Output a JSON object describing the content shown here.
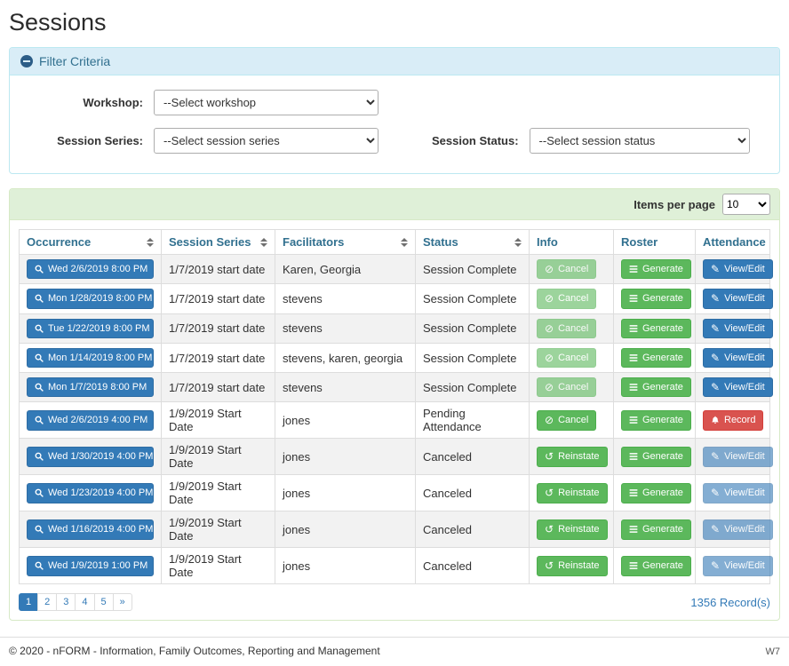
{
  "page": {
    "title": "Sessions",
    "footer_text": "© 2020 - nFORM - Information, Family Outcomes, Reporting and Management",
    "footer_right": "W7"
  },
  "filter": {
    "title": "Filter Criteria",
    "workshop_label": "Workshop:",
    "workshop_selected": "--Select workshop",
    "session_series_label": "Session Series:",
    "session_series_selected": "--Select session series",
    "session_status_label": "Session Status:",
    "session_status_selected": "--Select session status"
  },
  "table": {
    "items_per_page_label": "Items per page",
    "items_per_page_selected": "10",
    "columns": [
      {
        "label": "Occurrence",
        "sortable": true
      },
      {
        "label": "Session Series",
        "sortable": true
      },
      {
        "label": "Facilitators",
        "sortable": true
      },
      {
        "label": "Status",
        "sortable": true
      },
      {
        "label": "Info",
        "sortable": false
      },
      {
        "label": "Roster",
        "sortable": false
      },
      {
        "label": "Attendance",
        "sortable": false
      }
    ],
    "rows": [
      {
        "occurrence": {
          "label": "Wed 2/6/2019 8:00 PM",
          "icon": "search-icon"
        },
        "session_series": "1/7/2019 start date",
        "facilitators": "Karen, Georgia",
        "status": "Session Complete",
        "info": {
          "label": "Cancel",
          "icon": "ban-icon",
          "variant": "success",
          "disabled": true
        },
        "roster": {
          "label": "Generate",
          "icon": "list-icon",
          "variant": "success",
          "disabled": false
        },
        "attendance": {
          "label": "View/Edit",
          "icon": "pencil-icon",
          "variant": "primary",
          "disabled": false
        }
      },
      {
        "occurrence": {
          "label": "Mon 1/28/2019 8:00 PM",
          "icon": "search-icon"
        },
        "session_series": "1/7/2019 start date",
        "facilitators": "stevens",
        "status": "Session Complete",
        "info": {
          "label": "Cancel",
          "icon": "ban-icon",
          "variant": "success",
          "disabled": true
        },
        "roster": {
          "label": "Generate",
          "icon": "list-icon",
          "variant": "success",
          "disabled": false
        },
        "attendance": {
          "label": "View/Edit",
          "icon": "pencil-icon",
          "variant": "primary",
          "disabled": false
        }
      },
      {
        "occurrence": {
          "label": "Tue 1/22/2019 8:00 PM",
          "icon": "search-icon"
        },
        "session_series": "1/7/2019 start date",
        "facilitators": "stevens",
        "status": "Session Complete",
        "info": {
          "label": "Cancel",
          "icon": "ban-icon",
          "variant": "success",
          "disabled": true
        },
        "roster": {
          "label": "Generate",
          "icon": "list-icon",
          "variant": "success",
          "disabled": false
        },
        "attendance": {
          "label": "View/Edit",
          "icon": "pencil-icon",
          "variant": "primary",
          "disabled": false
        }
      },
      {
        "occurrence": {
          "label": "Mon 1/14/2019 8:00 PM",
          "icon": "search-icon"
        },
        "session_series": "1/7/2019 start date",
        "facilitators": "stevens, karen, georgia",
        "status": "Session Complete",
        "info": {
          "label": "Cancel",
          "icon": "ban-icon",
          "variant": "success",
          "disabled": true
        },
        "roster": {
          "label": "Generate",
          "icon": "list-icon",
          "variant": "success",
          "disabled": false
        },
        "attendance": {
          "label": "View/Edit",
          "icon": "pencil-icon",
          "variant": "primary",
          "disabled": false
        }
      },
      {
        "occurrence": {
          "label": "Mon 1/7/2019 8:00 PM",
          "icon": "search-icon"
        },
        "session_series": "1/7/2019 start date",
        "facilitators": "stevens",
        "status": "Session Complete",
        "info": {
          "label": "Cancel",
          "icon": "ban-icon",
          "variant": "success",
          "disabled": true
        },
        "roster": {
          "label": "Generate",
          "icon": "list-icon",
          "variant": "success",
          "disabled": false
        },
        "attendance": {
          "label": "View/Edit",
          "icon": "pencil-icon",
          "variant": "primary",
          "disabled": false
        }
      },
      {
        "occurrence": {
          "label": "Wed 2/6/2019 4:00 PM",
          "icon": "search-icon"
        },
        "session_series": "1/9/2019 Start Date",
        "facilitators": "jones",
        "status": "Pending Attendance",
        "info": {
          "label": "Cancel",
          "icon": "ban-icon",
          "variant": "success",
          "disabled": false
        },
        "roster": {
          "label": "Generate",
          "icon": "list-icon",
          "variant": "success",
          "disabled": false
        },
        "attendance": {
          "label": "Record",
          "icon": "bell-icon",
          "variant": "danger",
          "disabled": false
        }
      },
      {
        "occurrence": {
          "label": "Wed 1/30/2019 4:00 PM",
          "icon": "search-icon"
        },
        "session_series": "1/9/2019 Start Date",
        "facilitators": "jones",
        "status": "Canceled",
        "info": {
          "label": "Reinstate",
          "icon": "reinstate-icon",
          "variant": "success",
          "disabled": false
        },
        "roster": {
          "label": "Generate",
          "icon": "list-icon",
          "variant": "success",
          "disabled": false
        },
        "attendance": {
          "label": "View/Edit",
          "icon": "pencil-icon",
          "variant": "primary",
          "disabled": true
        }
      },
      {
        "occurrence": {
          "label": "Wed 1/23/2019 4:00 PM",
          "icon": "search-icon"
        },
        "session_series": "1/9/2019 Start Date",
        "facilitators": "jones",
        "status": "Canceled",
        "info": {
          "label": "Reinstate",
          "icon": "reinstate-icon",
          "variant": "success",
          "disabled": false
        },
        "roster": {
          "label": "Generate",
          "icon": "list-icon",
          "variant": "success",
          "disabled": false
        },
        "attendance": {
          "label": "View/Edit",
          "icon": "pencil-icon",
          "variant": "primary",
          "disabled": true
        }
      },
      {
        "occurrence": {
          "label": "Wed 1/16/2019 4:00 PM",
          "icon": "search-icon"
        },
        "session_series": "1/9/2019 Start Date",
        "facilitators": "jones",
        "status": "Canceled",
        "info": {
          "label": "Reinstate",
          "icon": "reinstate-icon",
          "variant": "success",
          "disabled": false
        },
        "roster": {
          "label": "Generate",
          "icon": "list-icon",
          "variant": "success",
          "disabled": false
        },
        "attendance": {
          "label": "View/Edit",
          "icon": "pencil-icon",
          "variant": "primary",
          "disabled": true
        }
      },
      {
        "occurrence": {
          "label": "Wed 1/9/2019 1:00 PM",
          "icon": "search-icon"
        },
        "session_series": "1/9/2019 Start Date",
        "facilitators": "jones",
        "status": "Canceled",
        "info": {
          "label": "Reinstate",
          "icon": "reinstate-icon",
          "variant": "success",
          "disabled": false
        },
        "roster": {
          "label": "Generate",
          "icon": "list-icon",
          "variant": "success",
          "disabled": false
        },
        "attendance": {
          "label": "View/Edit",
          "icon": "pencil-icon",
          "variant": "primary",
          "disabled": true
        }
      }
    ],
    "pagination": {
      "pages": [
        "1",
        "2",
        "3",
        "4",
        "5"
      ],
      "active": "1",
      "next": "»"
    },
    "record_count": "1356 Record(s)"
  },
  "colors": {
    "primary": "#337ab7",
    "success": "#5cb85c",
    "danger": "#d9534f",
    "filter_header_bg": "#d9edf7",
    "table_header_bg": "#dff0d8"
  }
}
